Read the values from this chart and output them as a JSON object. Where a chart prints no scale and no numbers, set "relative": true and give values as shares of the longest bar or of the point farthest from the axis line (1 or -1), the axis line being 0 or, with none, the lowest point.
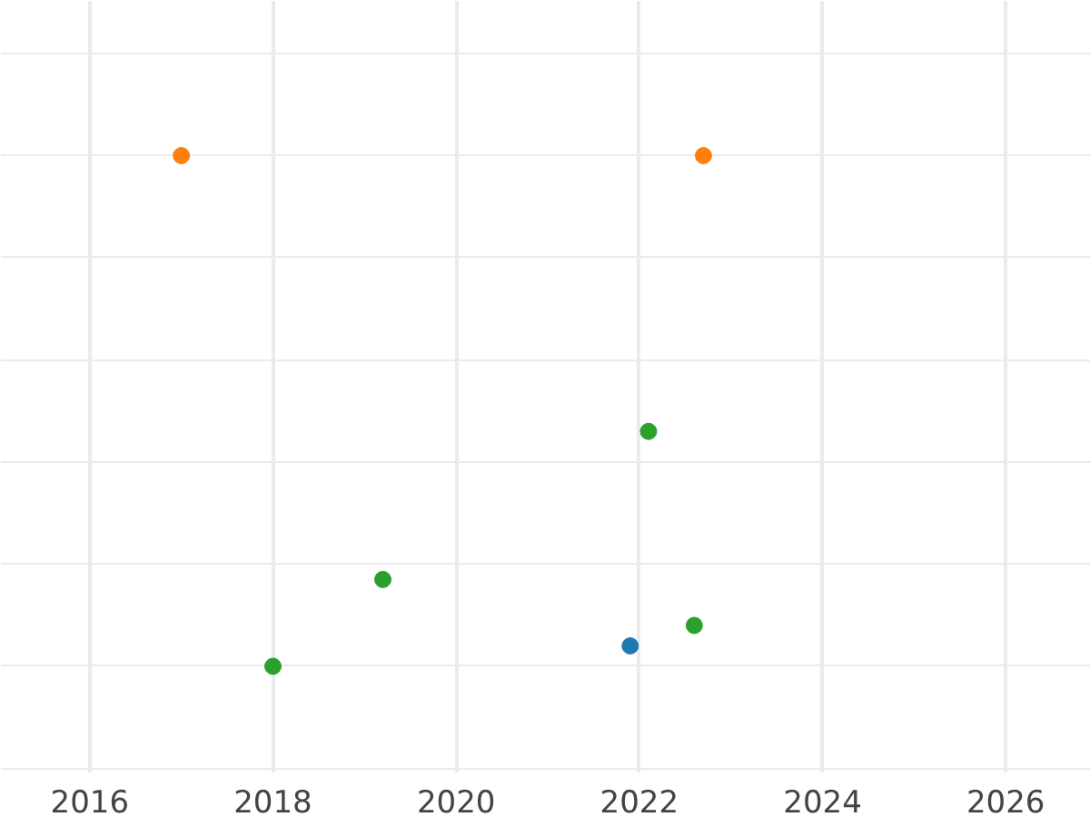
{
  "chart_data": {
    "type": "scatter",
    "relative": true,
    "xlim": [
      2015.03,
      2026.93
    ],
    "xticks": [
      2016,
      2018,
      2020,
      2022,
      2024,
      2026
    ],
    "grid": true,
    "tick_labels": "x",
    "marker": "circle",
    "series": [
      {
        "color": "#1f77b4",
        "x": [
          2021.9
        ],
        "values": [
          0.04
        ]
      },
      {
        "color": "#ff7f0e",
        "x": [
          2017.0,
          2022.7
        ],
        "values": [
          1,
          1
        ]
      },
      {
        "color": "#2ca02c",
        "x": [
          2018.0,
          2019.2,
          2022.1,
          2022.6
        ],
        "values": [
          0,
          0.17,
          0.46,
          0.08
        ]
      }
    ]
  }
}
